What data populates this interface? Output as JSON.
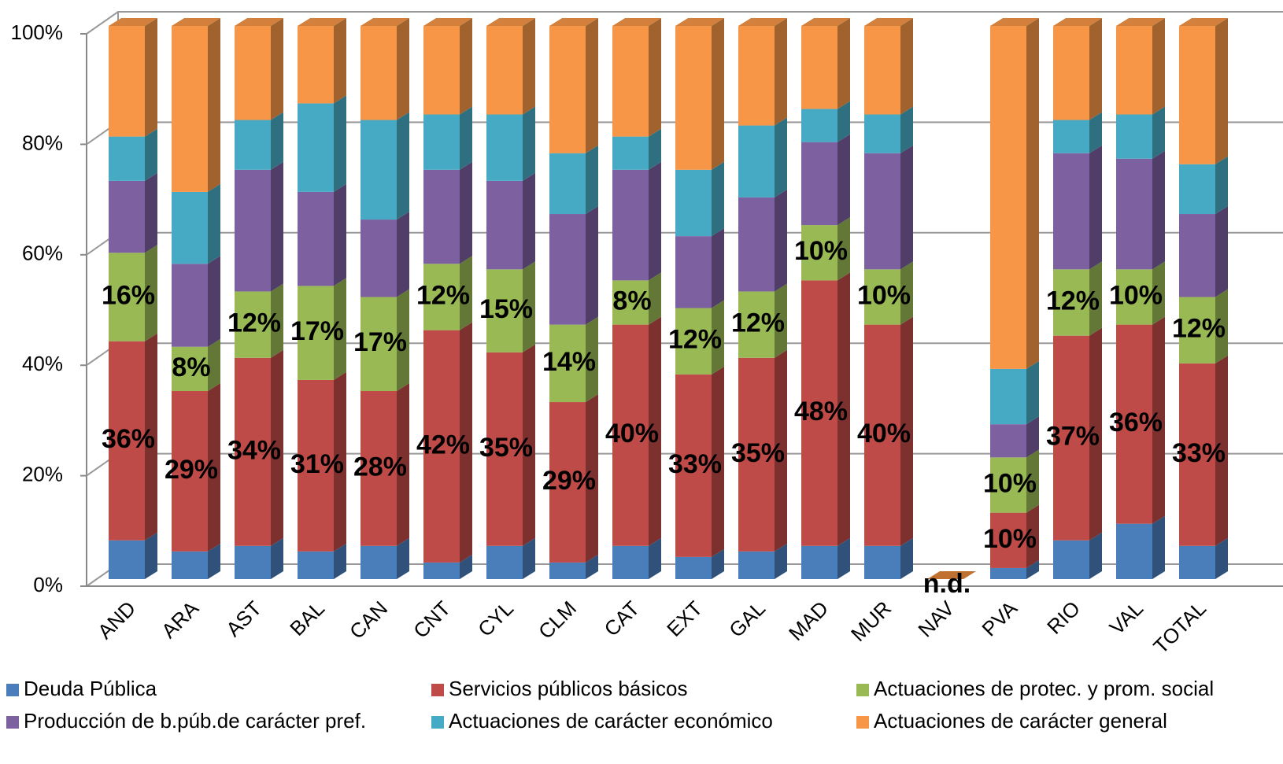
{
  "chart_data": {
    "type": "bar3d-stacked",
    "categories": [
      "AND",
      "ARA",
      "AST",
      "BAL",
      "CAN",
      "CNT",
      "CYL",
      "CLM",
      "CAT",
      "EXT",
      "GAL",
      "MAD",
      "MUR",
      "NAV",
      "PVA",
      "RIO",
      "VAL",
      "TOTAL"
    ],
    "series": [
      {
        "name": "Deuda Pública",
        "color": "#4a7ebb",
        "values": [
          7,
          5,
          6,
          5,
          6,
          3,
          6,
          3,
          6,
          4,
          5,
          6,
          6,
          null,
          2,
          7,
          10,
          6
        ]
      },
      {
        "name": "Servicios públicos básicos",
        "color": "#be4b48",
        "values": [
          36,
          29,
          34,
          31,
          28,
          42,
          35,
          29,
          40,
          33,
          35,
          48,
          40,
          null,
          10,
          37,
          36,
          33
        ],
        "value_labels": [
          "36%",
          "29%",
          "34%",
          "31%",
          "28%",
          "42%",
          "35%",
          "29%",
          "40%",
          "33%",
          "35%",
          "48%",
          "40%",
          null,
          "10%",
          "37%",
          "36%",
          "33%"
        ]
      },
      {
        "name": "Actuaciones de protec. y prom. social",
        "color": "#98b954",
        "values": [
          16,
          8,
          12,
          17,
          17,
          12,
          15,
          14,
          8,
          12,
          12,
          10,
          10,
          null,
          10,
          12,
          10,
          12
        ],
        "value_labels": [
          "16%",
          "8%",
          "12%",
          "17%",
          "17%",
          "12%",
          "15%",
          "14%",
          "8%",
          "12%",
          "12%",
          "10%",
          "10%",
          null,
          "10%",
          "12%",
          "10%",
          "12%"
        ]
      },
      {
        "name": "Producción de b.púb.de carácter pref.",
        "color": "#7d60a0",
        "values": [
          13,
          15,
          22,
          17,
          14,
          17,
          16,
          20,
          20,
          13,
          17,
          15,
          21,
          null,
          6,
          21,
          20,
          15
        ]
      },
      {
        "name": "Actuaciones de carácter económico",
        "color": "#46aac5",
        "values": [
          8,
          13,
          9,
          16,
          18,
          10,
          12,
          11,
          6,
          12,
          13,
          6,
          7,
          null,
          10,
          6,
          8,
          9
        ]
      },
      {
        "name": "Actuaciones de carácter general",
        "color": "#f79646",
        "values": [
          20,
          30,
          17,
          14,
          17,
          16,
          16,
          23,
          20,
          26,
          18,
          15,
          16,
          null,
          62,
          17,
          16,
          25
        ]
      }
    ],
    "annotations": [
      {
        "text": "n.d.",
        "category": "NAV"
      }
    ],
    "ylim": [
      0,
      100
    ],
    "yticks": [
      {
        "value": 0,
        "label": "0%"
      },
      {
        "value": 20,
        "label": "20%"
      },
      {
        "value": 40,
        "label": "40%"
      },
      {
        "value": 60,
        "label": "60%"
      },
      {
        "value": 80,
        "label": "80%"
      },
      {
        "value": 100,
        "label": "100%"
      }
    ],
    "grid": true
  }
}
